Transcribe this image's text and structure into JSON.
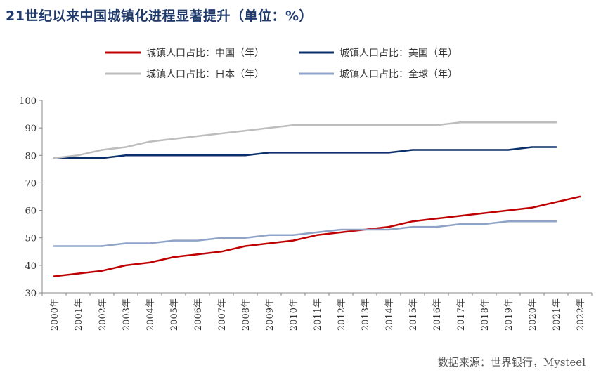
{
  "title": "21世纪以来中国城镇化进程显著提升（单位：%）",
  "source": "数据来源：世界银行，Mysteel",
  "chart_data": {
    "type": "line",
    "title": "21世纪以来中国城镇化进程显著提升（单位：%）",
    "ylim": [
      30,
      100
    ],
    "yticks": [
      30,
      40,
      50,
      60,
      70,
      80,
      90,
      100
    ],
    "grid": false,
    "legend_position": "top",
    "categories": [
      "2000年",
      "2001年",
      "2002年",
      "2003年",
      "2004年",
      "2005年",
      "2006年",
      "2007年",
      "2008年",
      "2009年",
      "2010年",
      "2011年",
      "2012年",
      "2013年",
      "2014年",
      "2015年",
      "2016年",
      "2017年",
      "2018年",
      "2019年",
      "2020年",
      "2021年",
      "2022年"
    ],
    "series": [
      {
        "name": "城镇人口占比：中国（年）",
        "color": "#c00000",
        "values": [
          36,
          37,
          38,
          40,
          41,
          43,
          44,
          45,
          47,
          48,
          49,
          51,
          52,
          53,
          54,
          56,
          57,
          58,
          59,
          60,
          61,
          63,
          65
        ]
      },
      {
        "name": "城镇人口占比：美国（年）",
        "color": "#0b2f6b",
        "values": [
          79,
          79,
          79,
          80,
          80,
          80,
          80,
          80,
          80,
          81,
          81,
          81,
          81,
          81,
          81,
          82,
          82,
          82,
          82,
          82,
          83,
          83,
          null
        ]
      },
      {
        "name": "城镇人口占比：日本（年）",
        "color": "#bdbdbd",
        "values": [
          79,
          80,
          82,
          83,
          85,
          86,
          87,
          88,
          89,
          90,
          91,
          91,
          91,
          91,
          91,
          91,
          91,
          92,
          92,
          92,
          92,
          92,
          null
        ]
      },
      {
        "name": "城镇人口占比：全球（年）",
        "color": "#8fa3c8",
        "values": [
          47,
          47,
          47,
          48,
          48,
          49,
          49,
          50,
          50,
          51,
          51,
          52,
          53,
          53,
          53,
          54,
          54,
          55,
          55,
          56,
          56,
          56,
          null
        ]
      }
    ]
  }
}
